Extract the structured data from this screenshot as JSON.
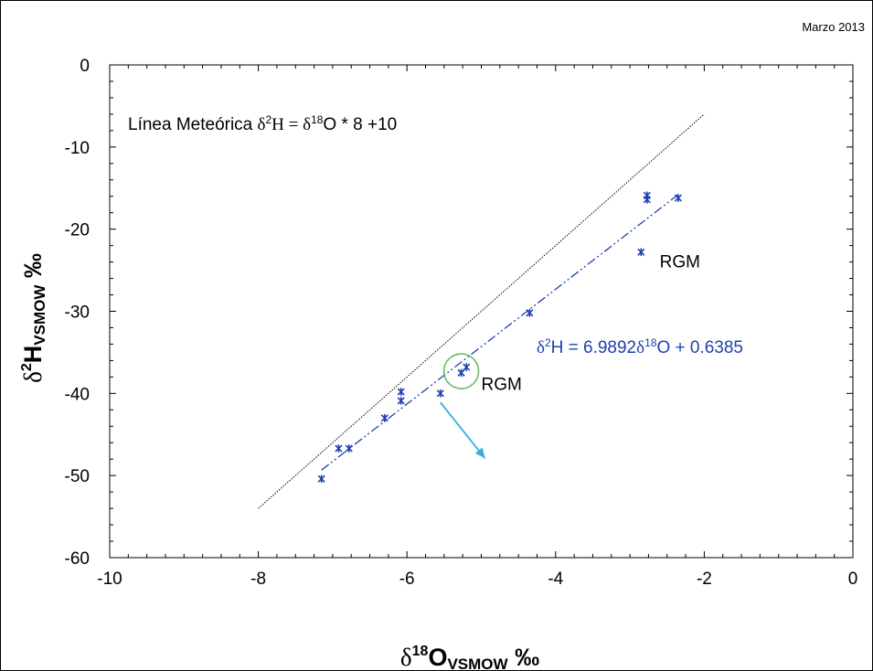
{
  "chart_data": {
    "type": "scatter",
    "date_label": "Marzo 2013",
    "xlim": [
      -10,
      0
    ],
    "ylim": [
      -60,
      0
    ],
    "x_ticks": [
      -10,
      -8,
      -6,
      -4,
      -2,
      0
    ],
    "y_ticks": [
      0,
      -10,
      -20,
      -30,
      -40,
      -50,
      -60
    ],
    "xlabel": {
      "delta": "δ",
      "sup": "18",
      "main": "O",
      "sub": "VSMOW",
      "unit": " ‰"
    },
    "ylabel": {
      "delta": "δ",
      "sup": "2",
      "main": "H",
      "sub": "VSMOW",
      "unit": " ‰"
    },
    "meteoric_line": {
      "label_prefix": "Línea Meteórica ",
      "eq_delta1": "δ",
      "eq_sup1": "2",
      "eq_mid1": "H = ",
      "eq_delta2": "δ",
      "eq_sup2": "18",
      "eq_tail": "O * 8 +10",
      "x_range": [
        -8,
        -2
      ],
      "slope": 8,
      "intercept": 10
    },
    "regression": {
      "eq_delta1": "δ",
      "eq_sup1": "2",
      "eq_mid": "H = 6.9892",
      "eq_delta2": "δ",
      "eq_sup2": "18",
      "eq_tail": "O + 0.6385",
      "x_range": [
        -7.15,
        -2.35
      ],
      "slope": 6.9892,
      "intercept": 0.6385,
      "color": "#1f3fb0"
    },
    "points": {
      "color": "#1f3fb0",
      "x": [
        -7.15,
        -6.92,
        -6.78,
        -6.3,
        -6.08,
        -6.08,
        -5.55,
        -5.27,
        -5.2,
        -4.35,
        -2.85,
        -2.77,
        -2.77,
        -2.35
      ],
      "y": [
        -50.4,
        -46.7,
        -46.7,
        -43.0,
        -40.9,
        -39.8,
        -40.0,
        -37.5,
        -36.8,
        -30.2,
        -22.8,
        -16.4,
        -15.9,
        -16.2
      ]
    },
    "annotations": [
      {
        "text": "RGM",
        "x": -2.6,
        "y": -23.9
      },
      {
        "text": "RGM",
        "x": -5.0,
        "y": -38.8
      }
    ],
    "highlight_circle": {
      "x": -5.27,
      "y": -37.3,
      "color": "#5cb85c"
    },
    "arrow": {
      "from": [
        -5.55,
        -41.1
      ],
      "to": [
        -4.95,
        -47.9
      ],
      "color": "#33aee0"
    }
  }
}
